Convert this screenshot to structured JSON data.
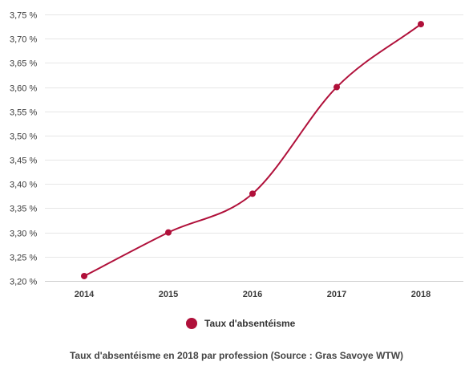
{
  "chart_data": {
    "type": "line",
    "x": [
      "2014",
      "2015",
      "2016",
      "2017",
      "2018"
    ],
    "series": [
      {
        "name": "Taux d'absentéisme",
        "values": [
          3.21,
          3.3,
          3.38,
          3.6,
          3.73
        ],
        "color": "#b0103a"
      }
    ],
    "ylim": [
      3.2,
      3.75
    ],
    "yticks": [
      "3,20 %",
      "3,25 %",
      "3,30 %",
      "3,35 %",
      "3,40 %",
      "3,45 %",
      "3,50 %",
      "3,55 %",
      "3,60 %",
      "3,65 %",
      "3,70 %",
      "3,75 %"
    ],
    "ytick_values": [
      3.2,
      3.25,
      3.3,
      3.35,
      3.4,
      3.45,
      3.5,
      3.55,
      3.6,
      3.65,
      3.7,
      3.75
    ],
    "grid": "horizontal",
    "legend_position": "bottom-center",
    "caption": "Taux d'absentéisme en 2018 par profession (Source : Gras Savoye WTW)",
    "grid_color": "#e6e6e6",
    "axis_color": "#cccccc"
  }
}
